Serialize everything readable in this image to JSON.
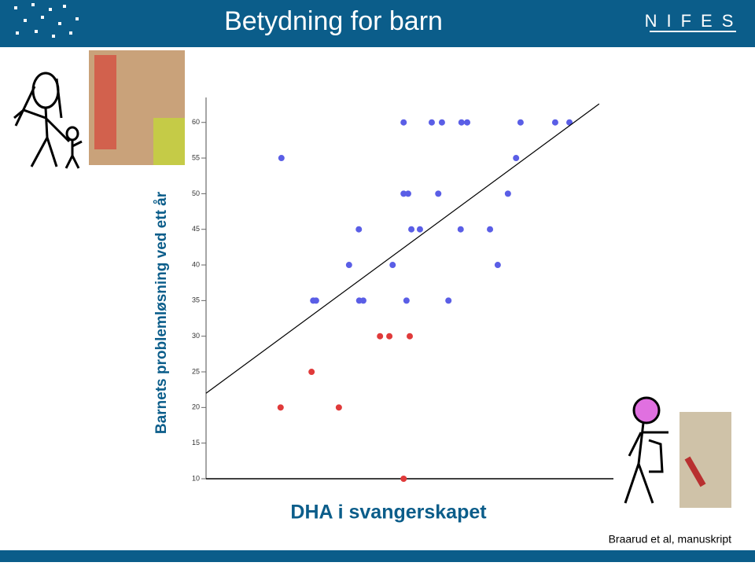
{
  "header": {
    "title": "Betydning for barn",
    "logo": "NIFES"
  },
  "chart_data": {
    "type": "scatter",
    "y_label": "Barnets problemløsning ved ett år",
    "x_label": "DHA i svangerskapet",
    "xlim": [
      0,
      100
    ],
    "ylim": [
      10,
      63.5
    ],
    "yticks": [
      10,
      15,
      20,
      25,
      30,
      35,
      40,
      45,
      50,
      55,
      60
    ],
    "series": [
      {
        "color": "#5a5ee6",
        "x": [
          48.5,
          55.4,
          57.9,
          62.7,
          64.1,
          77.2,
          85.7,
          89.2,
          18.5,
          76.1,
          48.5,
          49.6,
          57.0,
          74.1,
          37.5,
          50.4,
          52.5,
          62.5,
          69.7,
          35.1,
          45.8,
          71.6,
          26.3,
          27.0,
          37.6,
          38.6,
          49.2,
          59.5
        ],
        "values": [
          60,
          60,
          60,
          60,
          60,
          60,
          60,
          60,
          55,
          55,
          50,
          50,
          50,
          50,
          45,
          45,
          45,
          45,
          45,
          40,
          40,
          40,
          35,
          35,
          35,
          35,
          35,
          35
        ]
      },
      {
        "color": "#e03a3a",
        "x": [
          42.7,
          45.0,
          50.0,
          25.9,
          18.3,
          32.6,
          48.5
        ],
        "values": [
          30,
          30,
          30,
          25,
          20,
          20,
          10
        ]
      }
    ],
    "trendline": {
      "x": [
        0,
        96.5
      ],
      "values": [
        22.0,
        62.6
      ]
    }
  },
  "footer": {
    "citation": "Braarud et al, manuskript"
  }
}
